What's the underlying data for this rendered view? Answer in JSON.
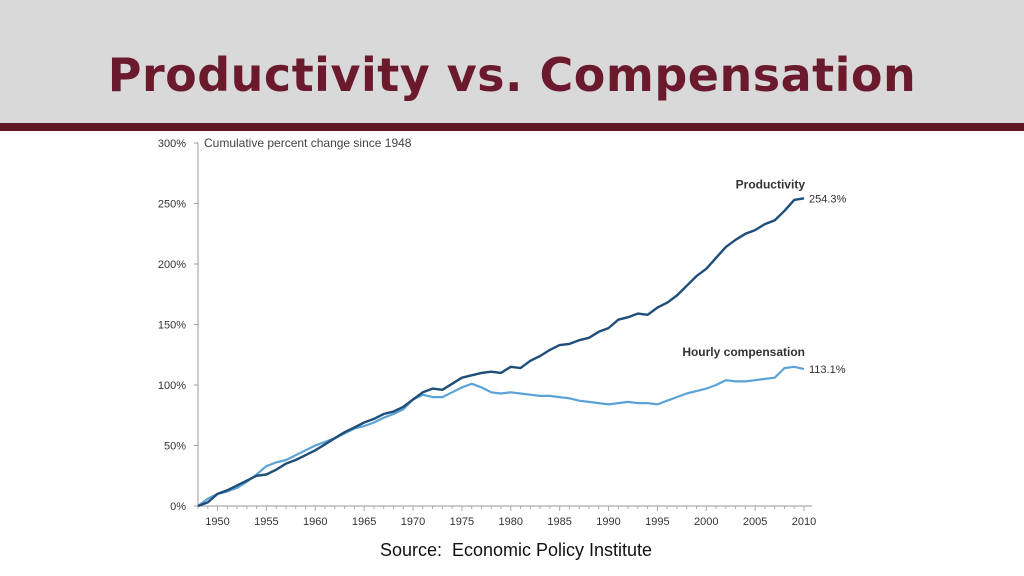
{
  "slide": {
    "title": "Productivity vs. Compensation",
    "source": "Source:  Economic Policy Institute"
  },
  "colors": {
    "header_bg": "#d9d9d9",
    "title": "#6b1a2e",
    "rule": "#5e1624",
    "productivity": "#1f4e79",
    "compensation": "#5ba3d6"
  },
  "chart_data": {
    "type": "line",
    "title": "Productivity vs. Compensation",
    "ylabel": "Cumulative percent change since 1948",
    "xlabel": "",
    "xlim": [
      1948,
      2010
    ],
    "ylim": [
      0,
      300
    ],
    "x_ticks": [
      1950,
      1955,
      1960,
      1965,
      1970,
      1975,
      1980,
      1985,
      1990,
      1995,
      2000,
      2005,
      2010
    ],
    "y_ticks": [
      0,
      50,
      100,
      150,
      200,
      250,
      300
    ],
    "y_tick_labels": [
      "0%",
      "50%",
      "100%",
      "150%",
      "200%",
      "250%",
      "300%"
    ],
    "grid": false,
    "series": [
      {
        "name": "Productivity",
        "end_label": "254.3%",
        "x": [
          1948,
          1949,
          1950,
          1951,
          1952,
          1953,
          1954,
          1955,
          1956,
          1957,
          1958,
          1959,
          1960,
          1961,
          1962,
          1963,
          1964,
          1965,
          1966,
          1967,
          1968,
          1969,
          1970,
          1971,
          1972,
          1973,
          1974,
          1975,
          1976,
          1977,
          1978,
          1979,
          1980,
          1981,
          1982,
          1983,
          1984,
          1985,
          1986,
          1987,
          1988,
          1989,
          1990,
          1991,
          1992,
          1993,
          1994,
          1995,
          1996,
          1997,
          1998,
          1999,
          2000,
          2001,
          2002,
          2003,
          2004,
          2005,
          2006,
          2007,
          2008,
          2009,
          2010
        ],
        "values": [
          0,
          3,
          10,
          13,
          17,
          21,
          25,
          26,
          30,
          35,
          38,
          42,
          46,
          51,
          56,
          61,
          65,
          69,
          72,
          76,
          78,
          82,
          88,
          94,
          97,
          96,
          101,
          106,
          108,
          110,
          111,
          110,
          115,
          114,
          120,
          124,
          129,
          133,
          134,
          137,
          139,
          144,
          147,
          154,
          156,
          159,
          158,
          164,
          168,
          174,
          182,
          190,
          196,
          205,
          214,
          220,
          225,
          228,
          233,
          236,
          244,
          253,
          254.3
        ]
      },
      {
        "name": "Hourly compensation",
        "end_label": "113.1%",
        "x": [
          1948,
          1949,
          1950,
          1951,
          1952,
          1953,
          1954,
          1955,
          1956,
          1957,
          1958,
          1959,
          1960,
          1961,
          1962,
          1963,
          1964,
          1965,
          1966,
          1967,
          1968,
          1969,
          1970,
          1971,
          1972,
          1973,
          1974,
          1975,
          1976,
          1977,
          1978,
          1979,
          1980,
          1981,
          1982,
          1983,
          1984,
          1985,
          1986,
          1987,
          1988,
          1989,
          1990,
          1991,
          1992,
          1993,
          1994,
          1995,
          1996,
          1997,
          1998,
          1999,
          2000,
          2001,
          2002,
          2003,
          2004,
          2005,
          2006,
          2007,
          2008,
          2009,
          2010
        ],
        "values": [
          0,
          6,
          10,
          12,
          15,
          20,
          26,
          33,
          36,
          38,
          42,
          46,
          50,
          53,
          56,
          60,
          64,
          66,
          69,
          73,
          76,
          80,
          88,
          92,
          90,
          90,
          94,
          98,
          101,
          98,
          94,
          93,
          94,
          93,
          92,
          91,
          91,
          90,
          89,
          87,
          86,
          85,
          84,
          85,
          86,
          85,
          85,
          84,
          87,
          90,
          93,
          95,
          97,
          100,
          104,
          103,
          103,
          104,
          105,
          106,
          114,
          115,
          113.1
        ]
      }
    ]
  }
}
